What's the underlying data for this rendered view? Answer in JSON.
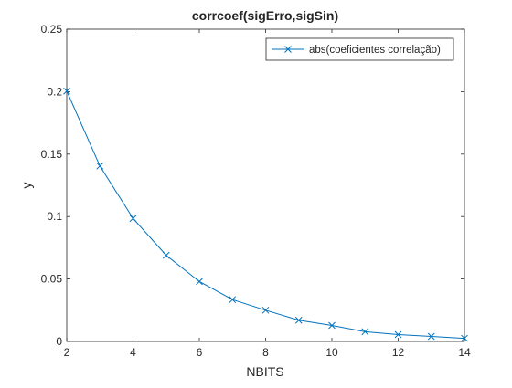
{
  "chart_data": {
    "type": "line",
    "title": "corrcoef(sigErro,sigSin)",
    "xlabel": "NBITS",
    "ylabel": "y",
    "xlim": [
      2,
      14
    ],
    "ylim": [
      0,
      0.25
    ],
    "xticks": [
      2,
      4,
      6,
      8,
      10,
      12,
      14
    ],
    "xtick_labels": [
      "2",
      "4",
      "6",
      "8",
      "10",
      "12",
      "14"
    ],
    "yticks": [
      0,
      0.05,
      0.1,
      0.15,
      0.2,
      0.25
    ],
    "ytick_labels": [
      "0",
      "0.05",
      "0.1",
      "0.15",
      "0.2",
      "0.25"
    ],
    "grid": false,
    "legend_position": "top-right",
    "series": [
      {
        "name": "abs(coeficientes correlação)",
        "color": "#0072BD",
        "marker": "x",
        "x": [
          2,
          3,
          4,
          5,
          6,
          7,
          8,
          9,
          10,
          11,
          12,
          13,
          14
        ],
        "y": [
          0.2005,
          0.1405,
          0.0985,
          0.069,
          0.048,
          0.0335,
          0.025,
          0.017,
          0.0128,
          0.0078,
          0.0055,
          0.004,
          0.0025
        ]
      }
    ]
  }
}
